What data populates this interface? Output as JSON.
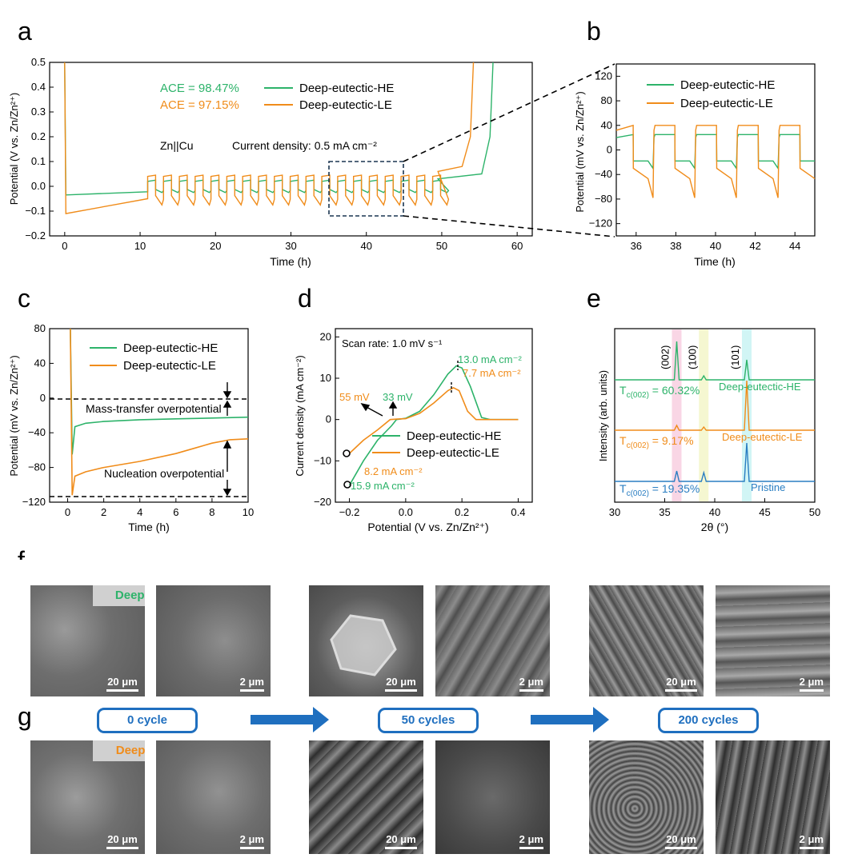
{
  "panels": {
    "a": "a",
    "b": "b",
    "c": "c",
    "d": "d",
    "e": "e",
    "f": "f",
    "g": "g"
  },
  "colors": {
    "he": "#2db36a",
    "le": "#f08c1a",
    "pristine": "#2a7ec2",
    "stage": "#1f6fbf"
  },
  "chart_data": [
    {
      "panel": "a",
      "type": "line",
      "xlabel": "Time (h)",
      "ylabel": "Potential (V vs. Zn/Zn²⁺)",
      "xlim": [
        -2,
        62
      ],
      "ylim": [
        -0.2,
        0.5
      ],
      "xticks": [
        0,
        10,
        20,
        30,
        40,
        50,
        60
      ],
      "yticks": [
        -0.2,
        -0.1,
        0.0,
        0.1,
        0.2,
        0.3,
        0.4,
        0.5
      ],
      "ytick_labels": [
        "−0.2",
        "−0.1",
        "0.0",
        "0.1",
        "0.2",
        "0.3",
        "0.4",
        "0.5"
      ],
      "annotations": {
        "ace_he": "ACE = 98.47%",
        "ace_le": "ACE = 97.15%",
        "cell": "Zn||Cu",
        "current": "Current density:  0.5 mA cm⁻²"
      },
      "legend": [
        "Deep-eutectic-HE",
        "Deep-eutectic-LE"
      ],
      "series": [
        {
          "name": "Deep-eutectic-HE",
          "plating_h": [
            0,
            11
          ],
          "plating_v": [
            -0.035,
            -0.022
          ],
          "cycle_period_h": 2.1,
          "cycle_start_h": 11,
          "cycle_end_h": 49.5,
          "strip_v": 0.02,
          "plate_v": -0.025,
          "final_rise_h": [
            49.5,
            56.8
          ],
          "final_v": 0.03
        },
        {
          "name": "Deep-eutectic-LE",
          "plating_h": [
            0,
            11
          ],
          "plating_v": [
            -0.11,
            -0.05
          ],
          "cycle_period_h": 2.1,
          "cycle_start_h": 11,
          "cycle_end_h": 49.5,
          "strip_v": 0.04,
          "plate_v": -0.075,
          "final_rise_h": [
            49.5,
            54.2
          ],
          "final_v": 0.06
        }
      ]
    },
    {
      "panel": "b",
      "type": "line",
      "xlabel": "Time (h)",
      "ylabel": "Potential (mV vs. Zn/Zn²⁺)",
      "xlim": [
        35,
        45
      ],
      "ylim": [
        -140,
        140
      ],
      "xticks": [
        36,
        38,
        40,
        42,
        44
      ],
      "yticks": [
        -120,
        -80,
        -40,
        0,
        40,
        80,
        120
      ],
      "ytick_labels": [
        "−120",
        "−80",
        "−40",
        "0",
        "40",
        "80",
        "120"
      ],
      "legend": [
        "Deep-eutectic-HE",
        "Deep-eutectic-LE"
      ],
      "series": [
        {
          "name": "Deep-eutectic-HE",
          "strip_mV": [
            20,
            25
          ],
          "plate_mV": [
            -18,
            -30
          ]
        },
        {
          "name": "Deep-eutectic-LE",
          "strip_mV": [
            32,
            40
          ],
          "plate_mV": [
            -30,
            -78
          ]
        }
      ]
    },
    {
      "panel": "c",
      "type": "line",
      "xlabel": "Time (h)",
      "ylabel": "Potential (mV vs. Zn/Zn²⁺)",
      "xlim": [
        -1,
        10
      ],
      "ylim": [
        -120,
        80
      ],
      "xticks": [
        0,
        2,
        4,
        6,
        8,
        10
      ],
      "yticks": [
        -120,
        -80,
        -40,
        0,
        40,
        80
      ],
      "ytick_labels": [
        "−120",
        "−80",
        "−40",
        "0",
        "40",
        "80"
      ],
      "legend": [
        "Deep-eutectic-HE",
        "Deep-eutectic-LE"
      ],
      "annotations": {
        "mass": "Mass-transfer overpotential",
        "nucleation": "Nucleation overpotential"
      },
      "series": [
        {
          "name": "Deep-eutectic-HE",
          "x": [
            0.15,
            0.25,
            0.4,
            1,
            2,
            4,
            6,
            8,
            10
          ],
          "y": [
            80,
            -65,
            -33,
            -29,
            -27,
            -25,
            -24,
            -23,
            -22
          ]
        },
        {
          "name": "Deep-eutectic-LE",
          "x": [
            0.15,
            0.25,
            0.4,
            1,
            2,
            4,
            6,
            7,
            8,
            9,
            10
          ],
          "y": [
            80,
            -112,
            -90,
            -85,
            -80,
            -73,
            -64,
            -58,
            -52,
            -48,
            -47
          ]
        }
      ]
    },
    {
      "panel": "d",
      "type": "line",
      "xlabel": "Potential  (V vs. Zn/Zn²⁺)",
      "ylabel": "Current density  (mA cm⁻²)",
      "xlim": [
        -0.25,
        0.45
      ],
      "ylim": [
        -20,
        22
      ],
      "xticks": [
        -0.2,
        0.0,
        0.2,
        0.4
      ],
      "xtick_labels": [
        "−0.2",
        "0.0",
        "0.2",
        "0.4"
      ],
      "yticks": [
        -20,
        -10,
        0,
        10,
        20
      ],
      "ytick_labels": [
        "−20",
        "−10",
        "0",
        "10",
        "20"
      ],
      "legend": [
        "Deep-eutectic-HE",
        "Deep-eutectic-LE"
      ],
      "annotations": {
        "scan": "Scan rate:  1.0 mV s⁻¹",
        "he_peak": "13.0 mA cm⁻²",
        "le_peak": "7.7 mA cm⁻²",
        "le_mv": "55 mV",
        "he_mv": "33 mV",
        "le_min": "8.2 mA cm⁻²",
        "he_min": "15.9 mA cm⁻²"
      },
      "series": [
        {
          "name": "Deep-eutectic-HE",
          "x": [
            -0.2,
            -0.15,
            -0.1,
            -0.05,
            -0.033,
            0,
            0.05,
            0.1,
            0.15,
            0.18,
            0.2,
            0.23,
            0.27,
            0.3,
            0.4
          ],
          "y": [
            -15.9,
            -10,
            -5,
            -1.5,
            0,
            0.3,
            2,
            6,
            11,
            13,
            12.5,
            8,
            0.5,
            0,
            0
          ]
        },
        {
          "name": "Deep-eutectic-LE",
          "x": [
            -0.2,
            -0.15,
            -0.1,
            -0.055,
            -0.03,
            0,
            0.05,
            0.1,
            0.15,
            0.17,
            0.19,
            0.22,
            0.25,
            0.4
          ],
          "y": [
            -8.2,
            -5,
            -2.5,
            0,
            0.1,
            0.2,
            1.5,
            4,
            7,
            7.7,
            7,
            2,
            0,
            0
          ]
        }
      ]
    },
    {
      "panel": "e",
      "type": "line",
      "xlabel": "2θ (°)",
      "ylabel": "Intensity (arb. units)",
      "xlim": [
        30,
        50
      ],
      "xticks": [
        30,
        35,
        40,
        45,
        50
      ],
      "peak_labels": [
        "(002)",
        "(100)",
        "(101)"
      ],
      "peak_positions": [
        36.2,
        38.9,
        43.2
      ],
      "series": [
        {
          "name": "Deep-eutectic-HE",
          "texture": "T",
          "texture_sub": "c(002)",
          "texture_value": " = 60.32%",
          "peaks": [
            36.2,
            38.9,
            43.2
          ],
          "heights": [
            48,
            5,
            25
          ]
        },
        {
          "name": "Deep-eutectic-LE",
          "texture": "T",
          "texture_sub": "c(002)",
          "texture_value": " = 9.17%",
          "peaks": [
            36.2,
            38.9,
            43.2
          ],
          "heights": [
            6,
            4,
            62
          ]
        },
        {
          "name": "Pristine",
          "texture": "T",
          "texture_sub": "c(002)",
          "texture_value": " = 19.35%",
          "peaks": [
            36.2,
            38.9,
            43.2
          ],
          "heights": [
            13,
            11,
            48
          ]
        }
      ]
    }
  ],
  "sem": {
    "row_f_label": "Deep-eutectic-HE",
    "row_g_label": "Deep-eutectic-LE",
    "scale_20": "20 μm",
    "scale_2": "2 μm",
    "stages": [
      "0 cycle",
      "50 cycles",
      "200 cycles"
    ]
  }
}
